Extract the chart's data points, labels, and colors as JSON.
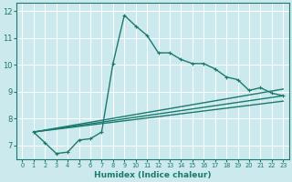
{
  "xlabel": "Humidex (Indice chaleur)",
  "xlim": [
    -0.5,
    23.5
  ],
  "ylim": [
    6.5,
    12.3
  ],
  "yticks": [
    7,
    8,
    9,
    10,
    11,
    12
  ],
  "xticks": [
    0,
    1,
    2,
    3,
    4,
    5,
    6,
    7,
    8,
    9,
    10,
    11,
    12,
    13,
    14,
    15,
    16,
    17,
    18,
    19,
    20,
    21,
    22,
    23
  ],
  "bg_color": "#cce9ed",
  "line_color": "#1a7a6e",
  "grid_color": "#ffffff",
  "lines": [
    {
      "x": [
        1,
        2,
        3,
        4,
        5,
        6,
        7,
        8,
        9,
        10,
        11,
        12,
        13,
        14,
        15,
        16,
        17,
        18,
        19,
        20,
        21,
        22,
        23
      ],
      "y": [
        7.5,
        7.1,
        6.7,
        6.75,
        7.2,
        7.25,
        7.5,
        10.05,
        11.85,
        11.45,
        11.1,
        10.45,
        10.45,
        10.2,
        10.05,
        10.05,
        9.85,
        9.55,
        9.45,
        9.05,
        9.15,
        8.95,
        8.85
      ],
      "marker": "+",
      "markersize": 3,
      "lw": 1.0,
      "linestyle": "-"
    },
    {
      "x": [
        1,
        23
      ],
      "y": [
        7.5,
        9.1
      ],
      "marker": null,
      "markersize": 0,
      "lw": 1.0,
      "linestyle": "-"
    },
    {
      "x": [
        1,
        23
      ],
      "y": [
        7.5,
        8.85
      ],
      "marker": null,
      "markersize": 0,
      "lw": 1.0,
      "linestyle": "-"
    },
    {
      "x": [
        1,
        23
      ],
      "y": [
        7.5,
        8.65
      ],
      "marker": null,
      "markersize": 0,
      "lw": 1.0,
      "linestyle": "-"
    }
  ]
}
